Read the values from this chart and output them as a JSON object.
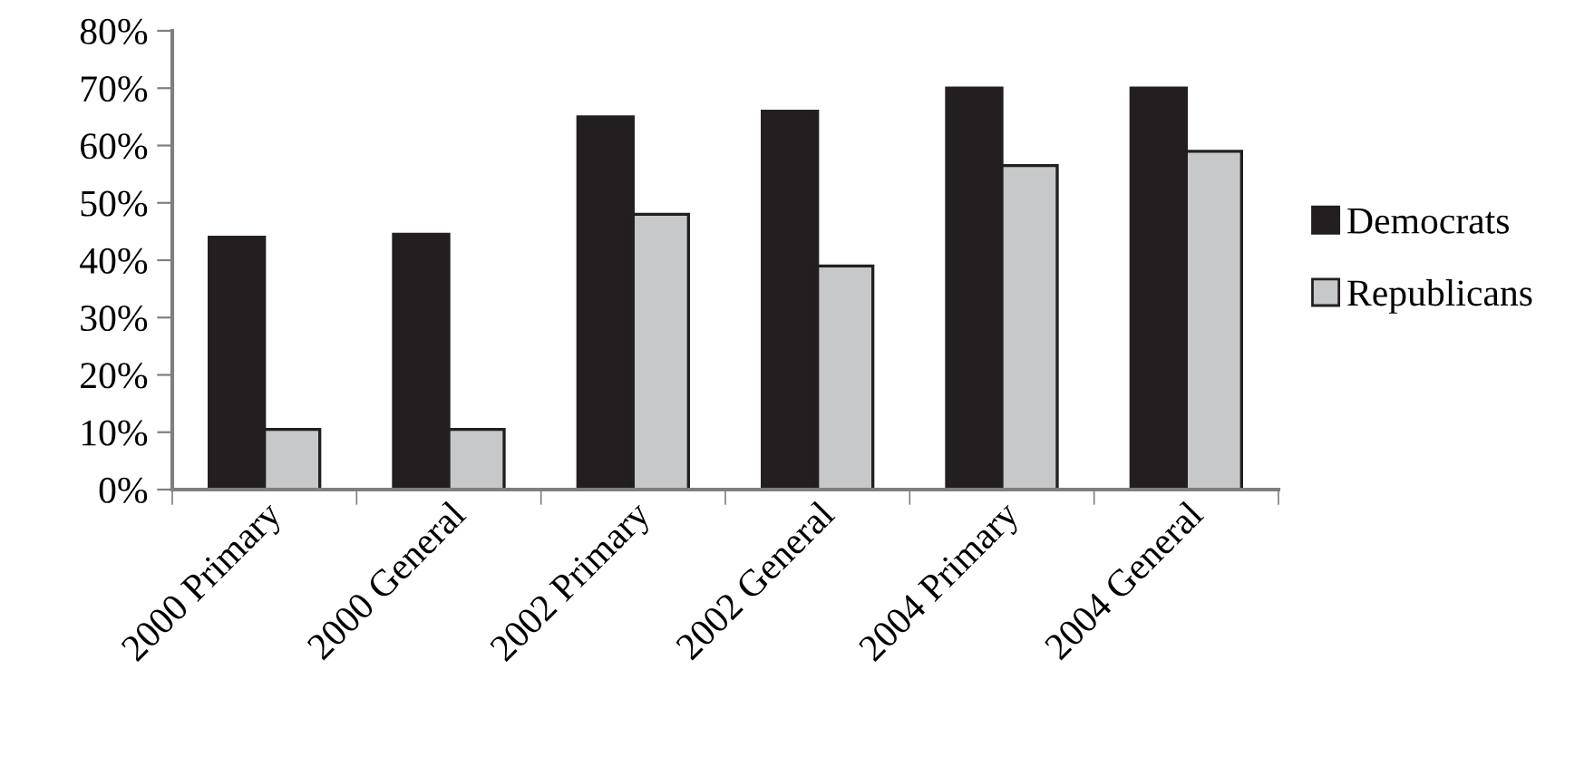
{
  "chart_data": {
    "type": "bar",
    "categories": [
      "2000 Primary",
      "2000 General",
      "2002 Primary",
      "2002 General",
      "2004 Primary",
      "2004 General"
    ],
    "series": [
      {
        "name": "Democrats",
        "color": "#231f20",
        "values": [
          44,
          44.5,
          65,
          66,
          70,
          70
        ]
      },
      {
        "name": "Republicans",
        "color": "#c7c8ca",
        "values": [
          10.5,
          10.5,
          48,
          39,
          56.5,
          59
        ]
      }
    ],
    "ylim": [
      0,
      80
    ],
    "yticks": [
      {
        "value": 0,
        "label": "0%"
      },
      {
        "value": 10,
        "label": "10%"
      },
      {
        "value": 20,
        "label": "20%"
      },
      {
        "value": 30,
        "label": "30%"
      },
      {
        "value": 40,
        "label": "40%"
      },
      {
        "value": 50,
        "label": "50%"
      },
      {
        "value": 60,
        "label": "60%"
      },
      {
        "value": 70,
        "label": "70%"
      },
      {
        "value": 80,
        "label": "80%"
      }
    ],
    "grid": false,
    "legend": "right"
  }
}
